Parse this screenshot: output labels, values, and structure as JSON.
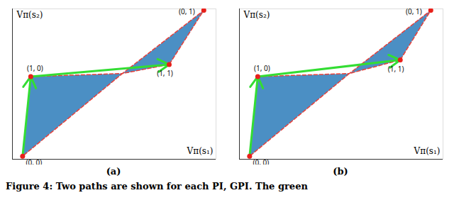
{
  "caption": "Figure 4: Two paths are shown for each PI, GPI. The green",
  "chart_data": [
    {
      "type": "area",
      "title": "(a)",
      "xlabel": "Vπ(s₁)",
      "ylabel": "Vπ(s₂)",
      "xlim": [
        0,
        1
      ],
      "ylim": [
        0,
        1
      ],
      "tick_labels": false,
      "region": {
        "x": [
          0.05,
          0.09,
          0.54,
          0.94,
          0.77,
          0.54
        ],
        "y": [
          0.02,
          0.55,
          0.57,
          0.99,
          0.63,
          0.57
        ],
        "color": "#2b7bba"
      },
      "boundary": {
        "x": [
          0.05,
          0.09,
          0.54,
          0.94,
          0.77,
          0.54
        ],
        "y": [
          0.02,
          0.55,
          0.57,
          0.99,
          0.63,
          0.57
        ],
        "color": "#e8403a",
        "line_style": "dashed"
      },
      "points": {
        "labels": [
          "(0, 0)",
          "(1, 0)",
          "(1, 1)",
          "(0, 1)"
        ],
        "x": [
          0.05,
          0.09,
          0.77,
          0.94
        ],
        "y": [
          0.02,
          0.55,
          0.63,
          0.99
        ],
        "color": "#e8201a"
      },
      "path": {
        "x": [
          0.05,
          0.09,
          0.77
        ],
        "y": [
          0.02,
          0.55,
          0.63
        ],
        "color": "#33dd33"
      }
    },
    {
      "type": "area",
      "title": "(b)",
      "xlabel": "Vπ(s₁)",
      "ylabel": "Vπ(s₂)",
      "xlim": [
        0,
        1
      ],
      "ylim": [
        0,
        1
      ],
      "tick_labels": false,
      "region": {
        "x": [
          0.05,
          0.09,
          0.54,
          0.94,
          0.79,
          0.54
        ],
        "y": [
          0.02,
          0.55,
          0.57,
          0.99,
          0.66,
          0.57
        ],
        "color": "#2b7bba"
      },
      "boundary": {
        "x": [
          0.05,
          0.09,
          0.54,
          0.94,
          0.79,
          0.54
        ],
        "y": [
          0.02,
          0.55,
          0.57,
          0.99,
          0.66,
          0.57
        ],
        "color": "#e8403a",
        "line_style": "dashed"
      },
      "points": {
        "labels": [
          "(0, 0)",
          "(1, 0)",
          "(1, 1)",
          "(0, 1)"
        ],
        "x": [
          0.05,
          0.09,
          0.79,
          0.94
        ],
        "y": [
          0.02,
          0.55,
          0.66,
          0.99
        ],
        "color": "#e8201a"
      },
      "path": {
        "x": [
          0.05,
          0.09,
          0.79
        ],
        "y": [
          0.02,
          0.55,
          0.66
        ],
        "color": "#33dd33"
      }
    }
  ]
}
